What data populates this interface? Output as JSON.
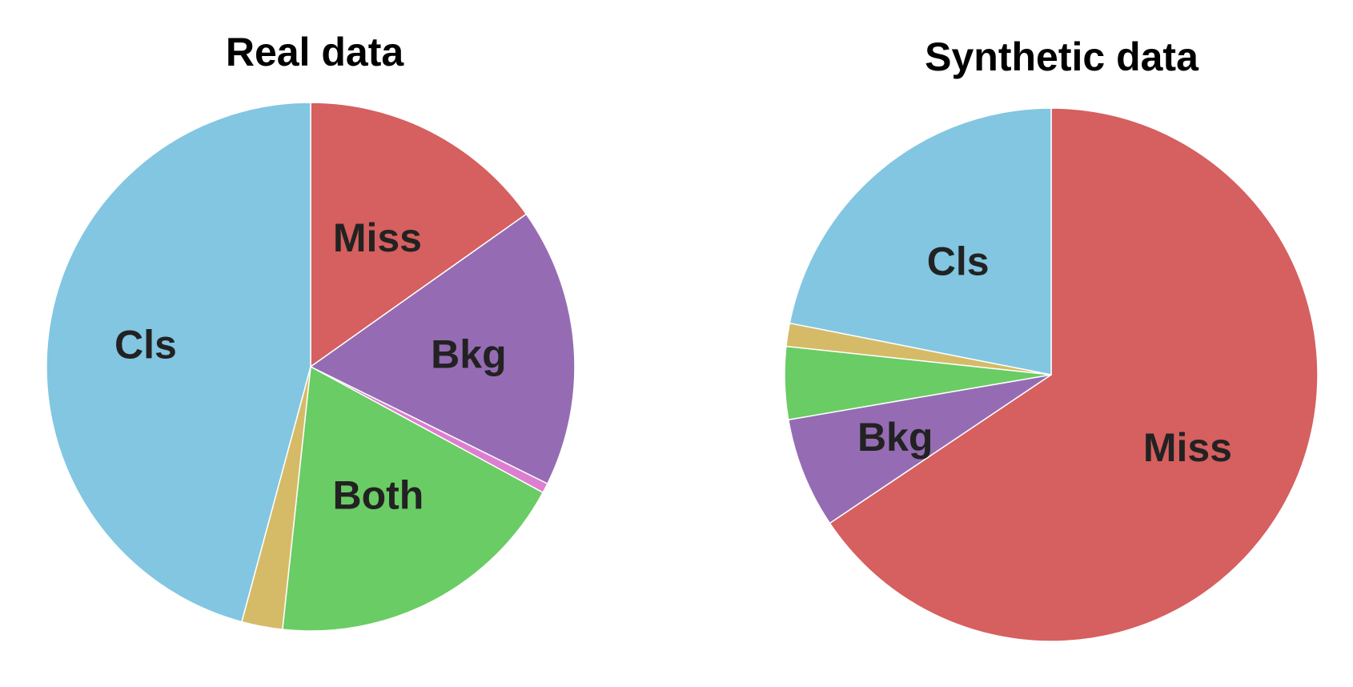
{
  "chart_data": [
    {
      "type": "pie",
      "title": "Real data",
      "start_angle_deg": 0,
      "direction": "clockwise",
      "slices": [
        {
          "label": "Miss",
          "value": 15.2,
          "color": "#d65f5f"
        },
        {
          "label": "Bkg",
          "value": 17.1,
          "color": "#956cb4"
        },
        {
          "label": "",
          "value": 0.6,
          "color": "#dd7fd0"
        },
        {
          "label": "Both",
          "value": 18.8,
          "color": "#6acc64"
        },
        {
          "label": "",
          "value": 2.5,
          "color": "#d5bb67"
        },
        {
          "label": "Cls",
          "value": 45.8,
          "color": "#82c6e2"
        }
      ]
    },
    {
      "type": "pie",
      "title": "Synthetic data",
      "start_angle_deg": 0,
      "direction": "clockwise",
      "slices": [
        {
          "label": "Miss",
          "value": 65.6,
          "color": "#d65f5f"
        },
        {
          "label": "Bkg",
          "value": 6.7,
          "color": "#956cb4"
        },
        {
          "label": "",
          "value": 4.4,
          "color": "#6acc64"
        },
        {
          "label": "",
          "value": 1.4,
          "color": "#d5bb67"
        },
        {
          "label": "Cls",
          "value": 21.9,
          "color": "#82c6e2"
        }
      ]
    }
  ]
}
